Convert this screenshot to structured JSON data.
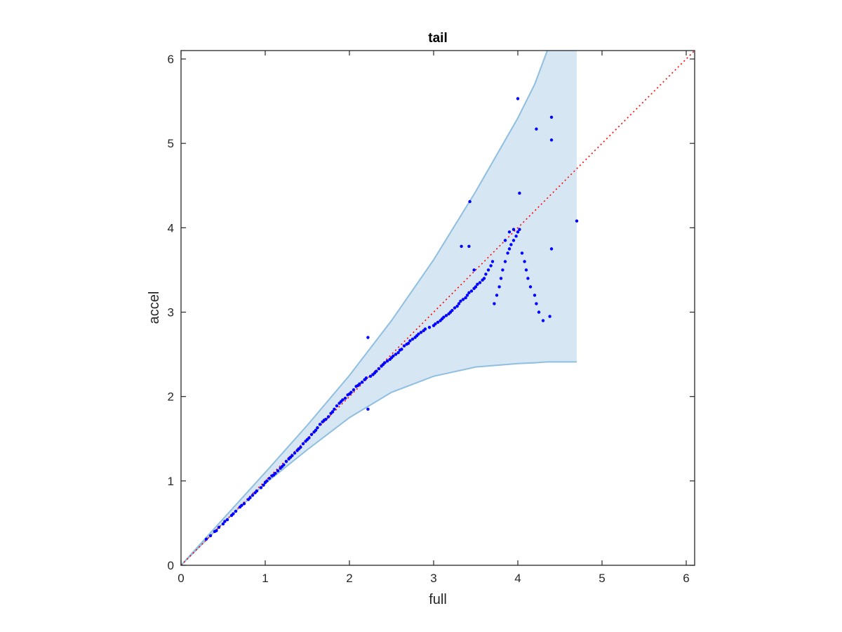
{
  "chart_data": {
    "type": "scatter",
    "title": "tail",
    "xlabel": "full",
    "ylabel": "accel",
    "xlim": [
      0,
      6.1
    ],
    "ylim": [
      0,
      6.1
    ],
    "xticks": [
      0,
      1,
      2,
      3,
      4,
      5,
      6
    ],
    "yticks": [
      0,
      1,
      2,
      3,
      4,
      5,
      6
    ],
    "grid": false,
    "box": true,
    "colors": {
      "points": "#0000ff",
      "band_fill": "#d6e6f2",
      "band_edge": "#8fbfe0",
      "reference_line": "#ff0000",
      "axes": "#262626"
    },
    "band": {
      "x": [
        0,
        0.5,
        1.0,
        1.5,
        2.0,
        2.5,
        3.0,
        3.5,
        4.0,
        4.2,
        4.35,
        4.7
      ],
      "upper": [
        0,
        0.55,
        1.1,
        1.66,
        2.25,
        2.9,
        3.62,
        4.43,
        5.3,
        5.7,
        6.1,
        6.1
      ],
      "lower": [
        0,
        0.5,
        0.97,
        1.37,
        1.75,
        2.05,
        2.24,
        2.35,
        2.39,
        2.4,
        2.41,
        2.41
      ]
    },
    "reference_line": {
      "from": [
        0,
        0
      ],
      "to": [
        6.1,
        6.1
      ],
      "style": "dotted"
    },
    "series": [
      {
        "x": [
          0.3,
          0.35,
          0.4,
          0.42,
          0.45,
          0.5,
          0.52,
          0.55,
          0.6,
          0.62,
          0.65,
          0.7,
          0.72,
          0.75,
          0.8,
          0.82,
          0.85,
          0.88,
          0.9,
          0.95,
          0.98,
          1.0,
          1.02,
          1.05,
          1.08,
          1.1,
          1.12,
          1.15,
          1.18,
          1.2,
          1.22,
          1.25,
          1.28,
          1.3,
          1.32,
          1.35,
          1.38,
          1.4,
          1.42,
          1.45,
          1.48,
          1.5,
          1.52,
          1.55,
          1.58,
          1.6,
          1.62,
          1.65,
          1.68,
          1.7,
          1.72,
          1.75,
          1.78,
          1.8,
          1.82,
          1.85,
          1.88,
          1.9,
          1.92,
          1.95,
          1.98,
          2.0,
          2.02,
          2.05,
          2.08,
          2.1,
          2.12,
          2.15,
          2.18,
          2.2,
          2.22,
          2.22,
          2.25,
          2.28,
          2.3,
          2.32,
          2.35,
          2.38,
          2.4,
          2.42,
          2.45,
          2.48,
          2.5,
          2.52,
          2.55,
          2.58,
          2.6,
          2.62,
          2.65,
          2.68,
          2.7,
          2.72,
          2.75,
          2.78,
          2.8,
          2.82,
          2.85,
          2.88,
          2.9,
          2.95,
          3.0,
          3.02,
          3.05,
          3.08,
          3.1,
          3.12,
          3.15,
          3.18,
          3.2,
          3.22,
          3.25,
          3.28,
          3.3,
          3.32,
          3.35,
          3.38,
          3.4,
          3.42,
          3.45,
          3.48,
          3.5,
          3.52,
          3.55,
          3.58,
          3.6,
          3.62,
          3.65,
          3.68,
          3.7,
          3.72,
          3.75,
          3.78,
          3.8,
          3.82,
          3.85,
          3.88,
          3.9,
          3.92,
          3.95,
          3.98,
          4.0,
          4.02,
          4.05,
          4.08,
          4.1,
          4.12,
          4.15,
          4.2,
          4.22,
          4.25,
          4.3,
          4.38,
          4.4,
          4.7,
          3.33,
          3.42,
          3.43,
          3.48,
          3.85,
          3.9,
          3.95,
          4.02,
          4.22,
          4.4,
          4.4,
          4.0
        ],
        "y": [
          0.31,
          0.35,
          0.4,
          0.41,
          0.45,
          0.49,
          0.52,
          0.54,
          0.59,
          0.61,
          0.64,
          0.69,
          0.71,
          0.73,
          0.78,
          0.8,
          0.83,
          0.86,
          0.88,
          0.92,
          0.95,
          0.98,
          1.0,
          1.03,
          1.06,
          1.07,
          1.09,
          1.12,
          1.15,
          1.17,
          1.19,
          1.23,
          1.26,
          1.28,
          1.3,
          1.33,
          1.36,
          1.38,
          1.4,
          1.44,
          1.47,
          1.49,
          1.51,
          1.55,
          1.58,
          1.6,
          1.63,
          1.67,
          1.7,
          1.72,
          1.73,
          1.76,
          1.8,
          1.82,
          1.85,
          1.89,
          1.92,
          1.94,
          1.96,
          1.98,
          2.02,
          2.03,
          2.05,
          2.08,
          2.12,
          2.13,
          2.15,
          2.17,
          2.2,
          2.22,
          2.7,
          1.85,
          2.24,
          2.26,
          2.28,
          2.3,
          2.33,
          2.36,
          2.38,
          2.4,
          2.42,
          2.44,
          2.46,
          2.48,
          2.5,
          2.52,
          2.55,
          2.56,
          2.6,
          2.62,
          2.63,
          2.66,
          2.68,
          2.7,
          2.72,
          2.74,
          2.76,
          2.78,
          2.8,
          2.82,
          2.84,
          2.86,
          2.88,
          2.9,
          2.92,
          2.94,
          2.96,
          2.98,
          3.0,
          3.02,
          3.05,
          3.07,
          3.1,
          3.13,
          3.15,
          3.17,
          3.2,
          3.23,
          3.25,
          3.28,
          3.3,
          3.33,
          3.35,
          3.38,
          3.4,
          3.45,
          3.5,
          3.55,
          3.6,
          3.1,
          3.2,
          3.3,
          3.4,
          3.5,
          3.6,
          3.7,
          3.75,
          3.8,
          3.85,
          3.9,
          3.95,
          3.98,
          3.7,
          3.6,
          3.5,
          3.4,
          3.3,
          3.2,
          3.1,
          3.0,
          2.9,
          2.95,
          3.75,
          4.08,
          3.78,
          3.78,
          4.31,
          3.5,
          3.85,
          3.95,
          3.98,
          4.41,
          5.17,
          5.31,
          5.04,
          5.53
        ]
      }
    ]
  }
}
